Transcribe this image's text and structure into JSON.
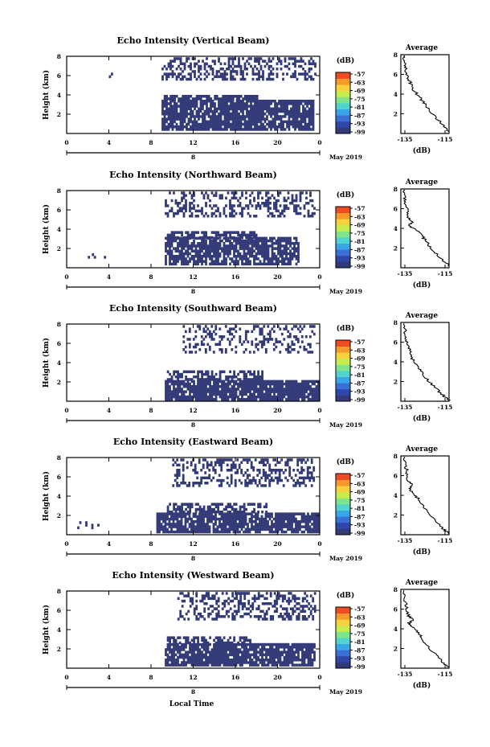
{
  "colors": {
    "echo": "#333a78",
    "colorbar": [
      "#333a78",
      "#2f47a8",
      "#3a6fd6",
      "#3aa6e8",
      "#52d3d0",
      "#7fe58a",
      "#c8ec4e",
      "#f7d23d",
      "#f79a2c",
      "#ef4b24"
    ]
  },
  "labels": {
    "ylabel": "Height (km)",
    "xlabel": "Local Time",
    "date": "May 2019",
    "date_marker": "8",
    "cb_unit": "(dB)",
    "avg_title": "Average",
    "avg_xlabel": "(dB)"
  },
  "chart_data": [
    {
      "type": "heatmap",
      "title": "Echo Intensity (Vertical Beam)",
      "xlabel": "Local Time",
      "ylabel": "Height (km)",
      "x_ticks": [
        "0",
        "4",
        "8",
        "12",
        "16",
        "20",
        "0"
      ],
      "y_ticks": [
        "2",
        "4",
        "6",
        "8"
      ],
      "xlim": [
        0,
        24
      ],
      "ylim": [
        0,
        8
      ],
      "colorbar_ticks": [
        "-57",
        "-63",
        "-69",
        "-75",
        "-81",
        "-87",
        "-93",
        "-99"
      ],
      "regions": [
        {
          "x": [
            9.0,
            23.3
          ],
          "y": [
            0.5,
            3.5
          ],
          "fill": 0.85
        },
        {
          "x": [
            9.2,
            18.0
          ],
          "y": [
            3.5,
            4.0
          ],
          "fill": 0.8
        },
        {
          "x": [
            9.0,
            23.5
          ],
          "y": [
            5.5,
            7.9
          ],
          "fill": 0.4
        },
        {
          "x": [
            4.0,
            4.3
          ],
          "y": [
            5.5,
            6.3
          ],
          "fill": 0.3
        }
      ],
      "average": {
        "title": "Average",
        "xlabel": "(dB)",
        "x_ticks": [
          "-135",
          "-115"
        ],
        "y_ticks": [
          "2",
          "4",
          "6",
          "8"
        ],
        "xlim": [
          -137,
          -113
        ],
        "ylim": [
          0,
          8
        ],
        "profile": [
          [
            -113,
            0.2
          ],
          [
            -116,
            0.8
          ],
          [
            -119,
            1.5
          ],
          [
            -122,
            2.2
          ],
          [
            -125,
            3.0
          ],
          [
            -127,
            3.5
          ],
          [
            -129,
            4.0
          ],
          [
            -131,
            4.5
          ],
          [
            -132,
            5.0
          ],
          [
            -133,
            5.5
          ],
          [
            -134,
            6.0
          ],
          [
            -134.5,
            6.5
          ],
          [
            -135,
            7.0
          ],
          [
            -135.5,
            7.5
          ],
          [
            -135,
            7.9
          ]
        ]
      }
    },
    {
      "type": "heatmap",
      "title": "Echo Intensity (Northward Beam)",
      "xlabel": "Local Time",
      "ylabel": "Height (km)",
      "x_ticks": [
        "0",
        "4",
        "8",
        "12",
        "16",
        "20",
        "0"
      ],
      "y_ticks": [
        "2",
        "4",
        "6",
        "8"
      ],
      "xlim": [
        0,
        24
      ],
      "ylim": [
        0,
        8
      ],
      "colorbar_ticks": [
        "-57",
        "-63",
        "-69",
        "-75",
        "-81",
        "-87",
        "-93",
        "-99"
      ],
      "regions": [
        {
          "x": [
            9.3,
            22.0
          ],
          "y": [
            0.5,
            3.2
          ],
          "fill": 0.8
        },
        {
          "x": [
            9.5,
            18.0
          ],
          "y": [
            3.2,
            3.8
          ],
          "fill": 0.7
        },
        {
          "x": [
            9.3,
            23.5
          ],
          "y": [
            5.5,
            7.9
          ],
          "fill": 0.35
        },
        {
          "x": [
            2.0,
            4.5
          ],
          "y": [
            1.0,
            1.5
          ],
          "fill": 0.15
        }
      ],
      "average": {
        "title": "Average",
        "xlabel": "(dB)",
        "x_ticks": [
          "-135",
          "-115"
        ],
        "y_ticks": [
          "2",
          "4",
          "6",
          "8"
        ],
        "xlim": [
          -137,
          -113
        ],
        "ylim": [
          0,
          8
        ],
        "profile": [
          [
            -113,
            0.2
          ],
          [
            -116,
            0.7
          ],
          [
            -119,
            1.4
          ],
          [
            -122,
            2.0
          ],
          [
            -124,
            2.6
          ],
          [
            -126,
            3.1
          ],
          [
            -128,
            3.6
          ],
          [
            -131,
            4.0
          ],
          [
            -133,
            4.3
          ],
          [
            -131,
            4.6
          ],
          [
            -133,
            5.0
          ],
          [
            -134,
            5.6
          ],
          [
            -134,
            6.2
          ],
          [
            -135,
            6.8
          ],
          [
            -135.5,
            7.4
          ],
          [
            -135,
            7.9
          ]
        ]
      }
    },
    {
      "type": "heatmap",
      "title": "Echo Intensity (Southward Beam)",
      "xlabel": "Local Time",
      "ylabel": "Height (km)",
      "x_ticks": [
        "0",
        "4",
        "8",
        "12",
        "16",
        "20",
        "0"
      ],
      "y_ticks": [
        "2",
        "4",
        "6",
        "8"
      ],
      "xlim": [
        0,
        24
      ],
      "ylim": [
        0,
        8
      ],
      "colorbar_ticks": [
        "-57",
        "-63",
        "-69",
        "-75",
        "-81",
        "-87",
        "-93",
        "-99"
      ],
      "regions": [
        {
          "x": [
            9.3,
            23.8
          ],
          "y": [
            0.2,
            2.2
          ],
          "fill": 0.9
        },
        {
          "x": [
            9.5,
            18.5
          ],
          "y": [
            2.2,
            3.2
          ],
          "fill": 0.55
        },
        {
          "x": [
            11.0,
            23.5
          ],
          "y": [
            5.0,
            7.9
          ],
          "fill": 0.3
        }
      ],
      "average": {
        "title": "Average",
        "xlabel": "(dB)",
        "x_ticks": [
          "-135",
          "-115"
        ],
        "y_ticks": [
          "2",
          "4",
          "6",
          "8"
        ],
        "xlim": [
          -137,
          -113
        ],
        "ylim": [
          0,
          8
        ],
        "profile": [
          [
            -113,
            0.1
          ],
          [
            -116,
            0.6
          ],
          [
            -119,
            1.2
          ],
          [
            -122,
            1.8
          ],
          [
            -125,
            2.5
          ],
          [
            -127,
            3.1
          ],
          [
            -129,
            3.6
          ],
          [
            -131,
            4.2
          ],
          [
            -132,
            4.8
          ],
          [
            -133,
            5.4
          ],
          [
            -134,
            6.0
          ],
          [
            -134.5,
            6.6
          ],
          [
            -135,
            7.2
          ],
          [
            -135.5,
            7.9
          ]
        ]
      }
    },
    {
      "type": "heatmap",
      "title": "Echo Intensity (Eastward Beam)",
      "xlabel": "Local Time",
      "ylabel": "Height (km)",
      "x_ticks": [
        "0",
        "4",
        "8",
        "12",
        "16",
        "20",
        "0"
      ],
      "y_ticks": [
        "2",
        "4",
        "6",
        "8"
      ],
      "xlim": [
        0,
        24
      ],
      "ylim": [
        0,
        8
      ],
      "colorbar_ticks": [
        "-57",
        "-63",
        "-69",
        "-75",
        "-81",
        "-87",
        "-93",
        "-99"
      ],
      "regions": [
        {
          "x": [
            8.5,
            23.8
          ],
          "y": [
            0.2,
            2.3
          ],
          "fill": 0.85
        },
        {
          "x": [
            9.5,
            19.0
          ],
          "y": [
            2.3,
            3.3
          ],
          "fill": 0.6
        },
        {
          "x": [
            10.0,
            23.5
          ],
          "y": [
            5.0,
            7.9
          ],
          "fill": 0.35
        },
        {
          "x": [
            1.0,
            4.0
          ],
          "y": [
            0.8,
            1.4
          ],
          "fill": 0.15
        }
      ],
      "average": {
        "title": "Average",
        "xlabel": "(dB)",
        "x_ticks": [
          "-135",
          "-115"
        ],
        "y_ticks": [
          "2",
          "4",
          "6",
          "8"
        ],
        "xlim": [
          -137,
          -113
        ],
        "ylim": [
          0,
          8
        ],
        "profile": [
          [
            -113,
            0.1
          ],
          [
            -116,
            0.6
          ],
          [
            -119,
            1.3
          ],
          [
            -122,
            2.0
          ],
          [
            -125,
            2.7
          ],
          [
            -127,
            3.3
          ],
          [
            -129,
            3.8
          ],
          [
            -131,
            4.3
          ],
          [
            -133,
            4.7
          ],
          [
            -131,
            5.0
          ],
          [
            -133,
            5.4
          ],
          [
            -134,
            6.0
          ],
          [
            -134,
            6.6
          ],
          [
            -135,
            7.2
          ],
          [
            -135,
            7.9
          ]
        ]
      }
    },
    {
      "type": "heatmap",
      "title": "Echo Intensity (Westward Beam)",
      "xlabel": "Local Time",
      "ylabel": "Height (km)",
      "x_ticks": [
        "0",
        "4",
        "8",
        "12",
        "16",
        "20",
        "0"
      ],
      "y_ticks": [
        "2",
        "4",
        "6",
        "8"
      ],
      "xlim": [
        0,
        24
      ],
      "ylim": [
        0,
        8
      ],
      "colorbar_ticks": [
        "-57",
        "-63",
        "-69",
        "-75",
        "-81",
        "-87",
        "-93",
        "-99"
      ],
      "regions": [
        {
          "x": [
            9.3,
            23.5
          ],
          "y": [
            0.3,
            2.6
          ],
          "fill": 0.85
        },
        {
          "x": [
            9.5,
            17.5
          ],
          "y": [
            2.6,
            3.3
          ],
          "fill": 0.6
        },
        {
          "x": [
            10.5,
            23.5
          ],
          "y": [
            5.0,
            7.9
          ],
          "fill": 0.4
        }
      ],
      "average": {
        "title": "Average",
        "xlabel": "(dB)",
        "x_ticks": [
          "-135",
          "-115"
        ],
        "y_ticks": [
          "2",
          "4",
          "6",
          "8"
        ],
        "xlim": [
          -137,
          -113
        ],
        "ylim": [
          0,
          8
        ],
        "profile": [
          [
            -113,
            0.1
          ],
          [
            -116,
            0.6
          ],
          [
            -119,
            1.2
          ],
          [
            -122,
            1.9
          ],
          [
            -125,
            2.6
          ],
          [
            -127,
            3.2
          ],
          [
            -129,
            3.7
          ],
          [
            -131,
            4.2
          ],
          [
            -133,
            4.6
          ],
          [
            -131,
            4.9
          ],
          [
            -133,
            5.3
          ],
          [
            -134,
            5.9
          ],
          [
            -134.5,
            6.5
          ],
          [
            -135,
            7.1
          ],
          [
            -135.5,
            7.9
          ]
        ]
      }
    }
  ]
}
